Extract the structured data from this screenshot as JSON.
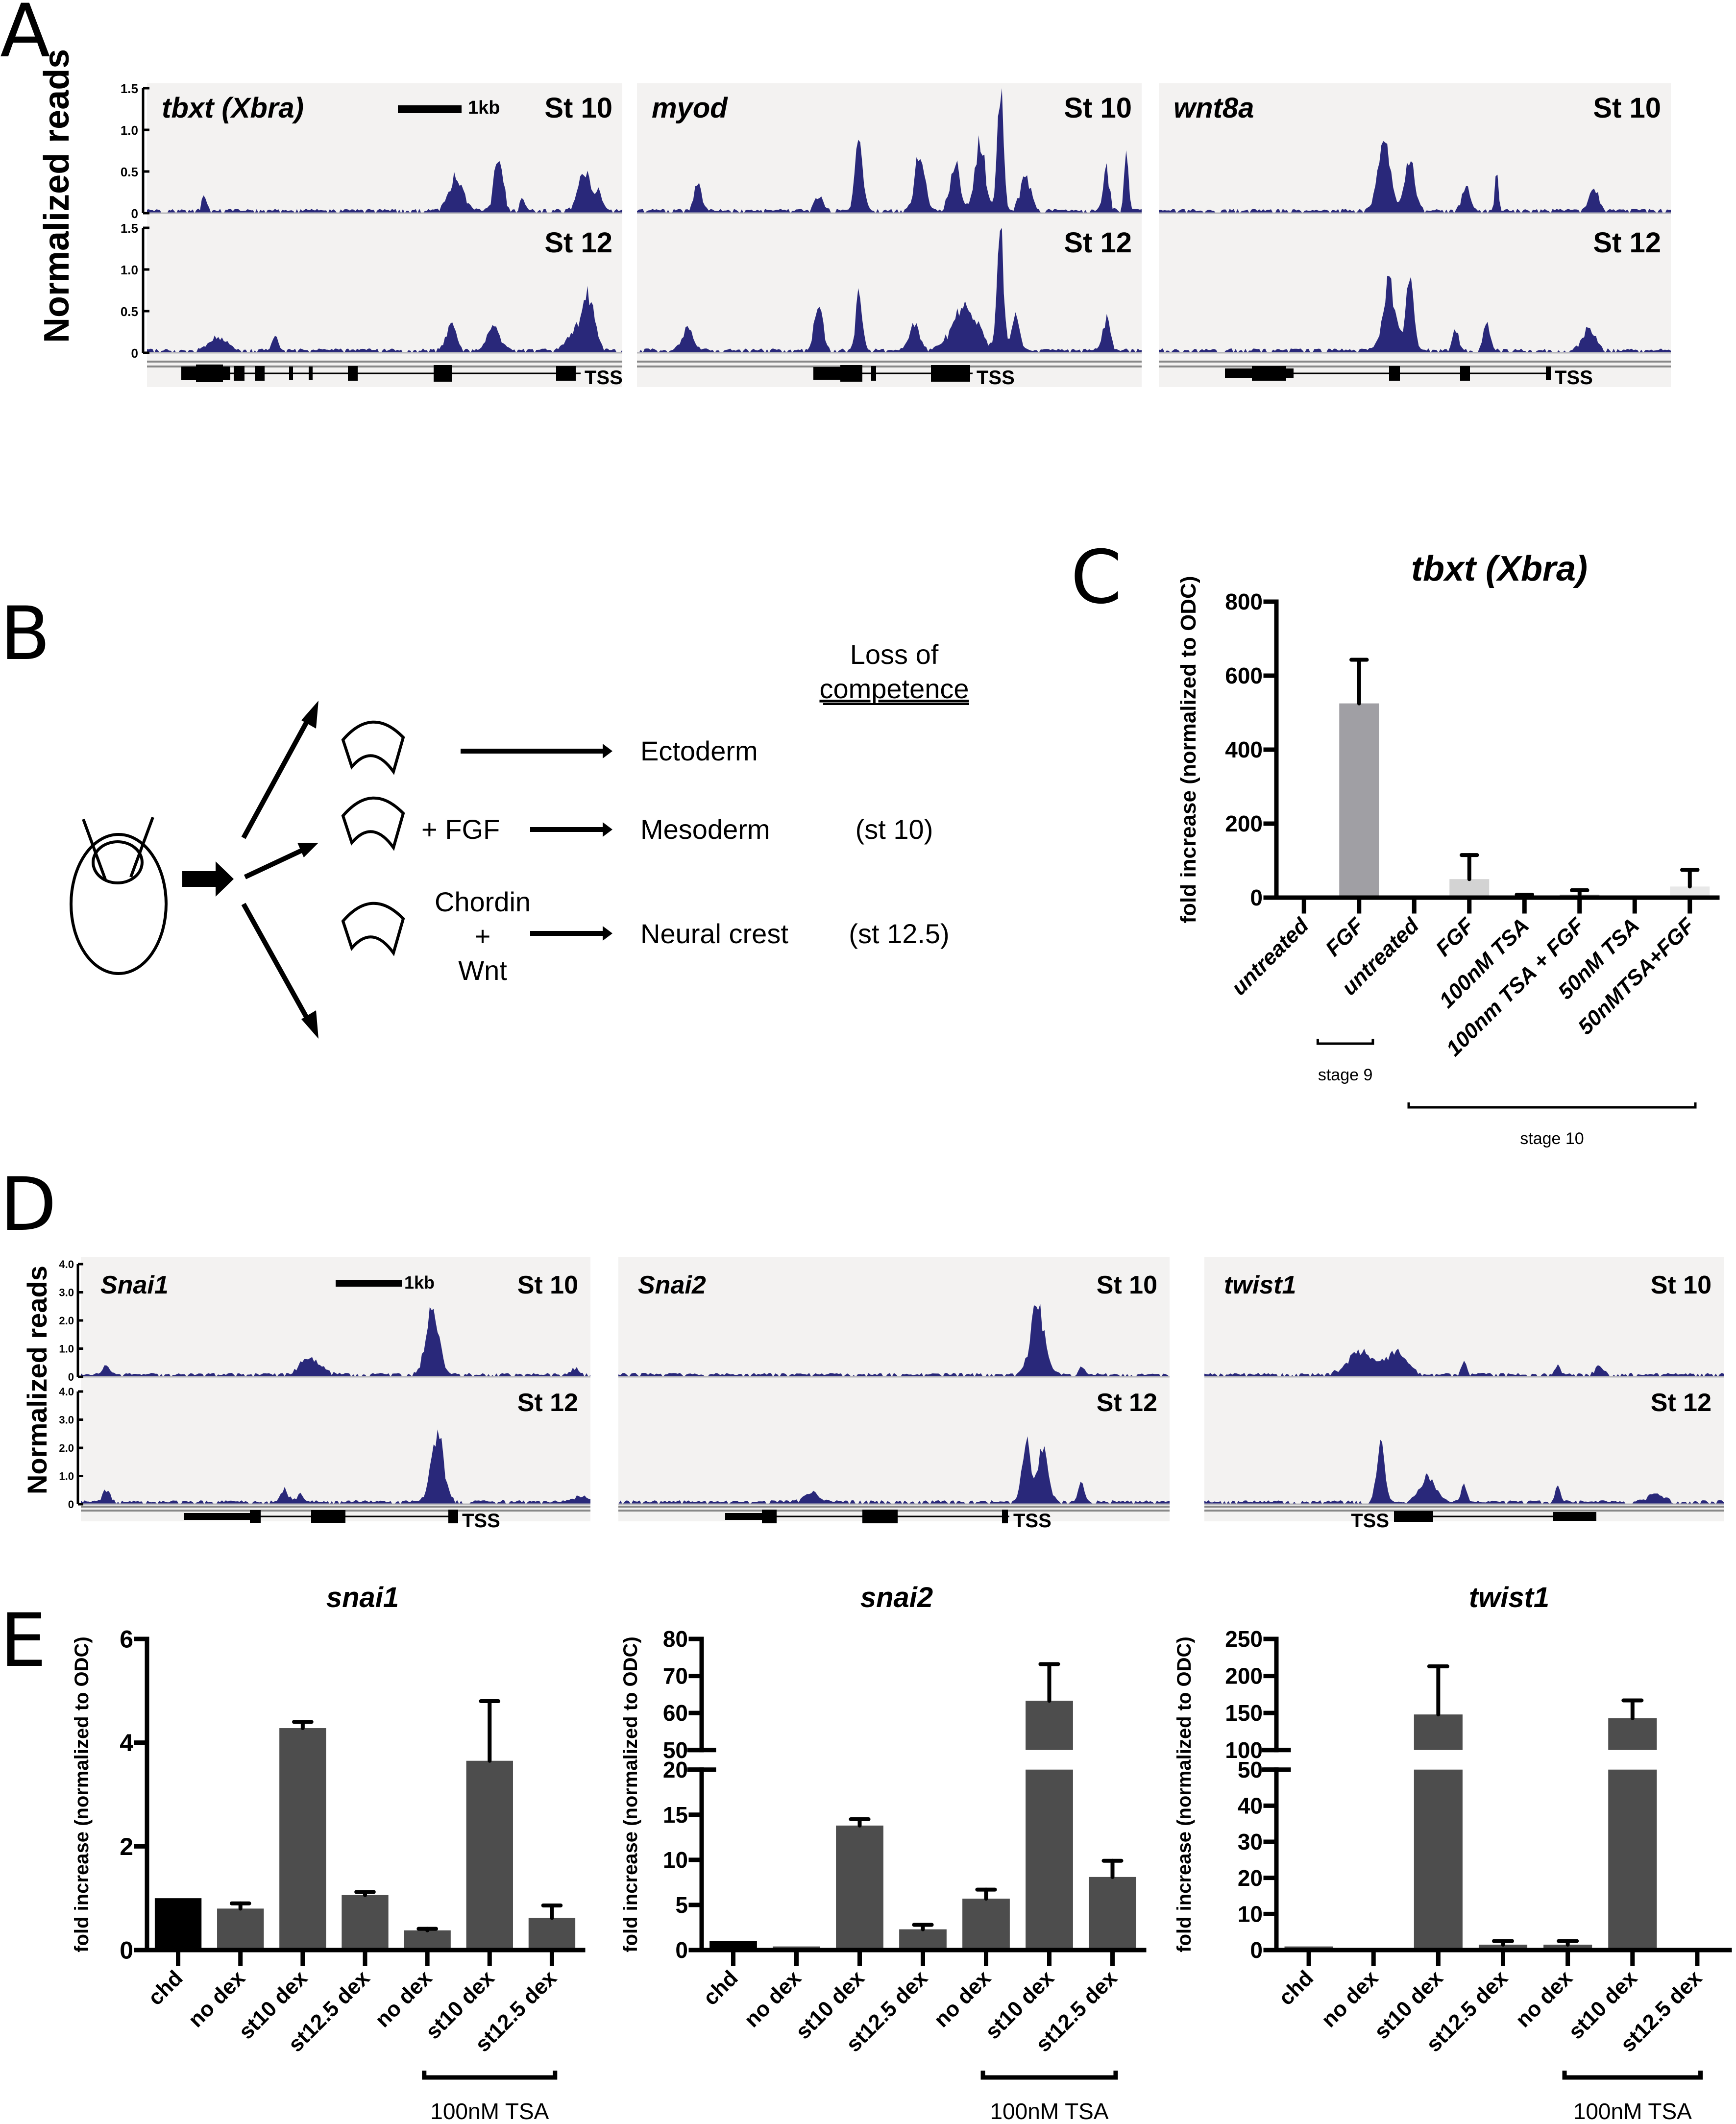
{
  "panels": {
    "A": {
      "letter": "A",
      "y_axis_label": "Normalized reads",
      "y_ticks": [
        "0",
        "0.5",
        "1.0",
        "1.5"
      ],
      "scale_bar_label": "1kb",
      "tss_label": "TSS",
      "stage_labels": [
        "St 10",
        "St 12"
      ],
      "tracks": [
        {
          "gene": "tbxt (Xbra)"
        },
        {
          "gene": "myod"
        },
        {
          "gene": "wnt8a"
        }
      ]
    },
    "B": {
      "letter": "B",
      "header_line1": "Loss of",
      "header_line2": "competence",
      "rows": [
        {
          "treatment": "",
          "fate": "Ectoderm",
          "stage": ""
        },
        {
          "treatment": "+  FGF",
          "fate": "Mesoderm",
          "stage": "(st 10)"
        },
        {
          "treatment_lines": [
            "Chordin",
            "+",
            "Wnt"
          ],
          "fate": "Neural crest",
          "stage": "(st 12.5)"
        }
      ]
    },
    "C": {
      "letter": "C"
    },
    "D": {
      "letter": "D",
      "y_axis_label": "Normalized reads",
      "y_ticks": [
        "0",
        "1.0",
        "2.0",
        "3.0",
        "4.0"
      ],
      "scale_bar_label": "1kb",
      "tss_label": "TSS",
      "stage_labels": [
        "St 10",
        "St 12"
      ],
      "tracks": [
        {
          "gene": "Snai1"
        },
        {
          "gene": "Snai2"
        },
        {
          "gene": "twist1"
        }
      ]
    },
    "E": {
      "letter": "E",
      "bracket_label": "100nM TSA"
    }
  },
  "colors": {
    "track_fill": "#29287a",
    "track_bg": "#f3f2f1",
    "bar_dark": "#4d4d4d",
    "bar_black": "#000000"
  },
  "chart_data": [
    {
      "id": "C",
      "type": "bar",
      "title": "tbxt (Xbra)",
      "ylabel": "fold increase (normalized to ODC)",
      "xlabel": "",
      "ylim": [
        0,
        800
      ],
      "yticks": [
        0,
        200,
        400,
        600,
        800
      ],
      "categories": [
        "untreated",
        "FGF",
        "untreated",
        "FGF",
        "100nM TSA",
        "100nm TSA + FGF",
        "50nM TSA",
        "50nMTSA+FGF"
      ],
      "values": [
        1,
        525,
        1,
        50,
        4,
        8,
        1,
        30
      ],
      "error_upper": [
        null,
        643,
        null,
        115,
        8,
        20,
        null,
        75
      ],
      "bar_colors": [
        "#a09fa4",
        "#a09fa4",
        "#d3d3d3",
        "#d3d3d3",
        "#777777",
        "#999999",
        "#e0e0e0",
        "#e8e8e8"
      ],
      "groups": [
        {
          "label": "stage 9",
          "from": 0,
          "to": 1
        },
        {
          "label": "stage 10",
          "from": 2,
          "to": 7
        }
      ]
    },
    {
      "id": "E-snai1",
      "type": "bar",
      "title": "snai1",
      "ylabel": "fold increase (normalized to ODC)",
      "ylim": [
        0,
        6
      ],
      "yticks": [
        0,
        2,
        4,
        6
      ],
      "categories": [
        "chd",
        "no dex",
        "st10 dex",
        "st12.5 dex",
        "no dex",
        "st10 dex",
        "st12.5 dex"
      ],
      "values": [
        1.0,
        0.8,
        4.28,
        1.06,
        0.38,
        3.65,
        0.62
      ],
      "error_upper": [
        null,
        0.9,
        4.4,
        1.12,
        0.41,
        4.8,
        0.86
      ],
      "bar_colors": [
        "#000000",
        "#4d4d4d",
        "#4d4d4d",
        "#4d4d4d",
        "#4d4d4d",
        "#4d4d4d",
        "#4d4d4d"
      ],
      "bracket": {
        "label": "100nM TSA",
        "from": 4,
        "to": 6
      }
    },
    {
      "id": "E-snai2",
      "type": "bar",
      "title": "snai2",
      "ylabel": "fold increase (normalized to ODC)",
      "ylim": [
        0,
        80
      ],
      "axis_break": [
        20,
        50
      ],
      "yticks": [
        0,
        5,
        10,
        15,
        20,
        50,
        60,
        70,
        80
      ],
      "categories": [
        "chd",
        "no dex",
        "st10 dex",
        "st12.5 dex",
        "no dex",
        "st10 dex",
        "st12.5 dex"
      ],
      "values": [
        1.0,
        0.4,
        13.8,
        2.3,
        5.7,
        63.3,
        8.1
      ],
      "error_upper": [
        null,
        null,
        14.5,
        2.8,
        6.7,
        73.2,
        9.9
      ],
      "bar_colors": [
        "#000000",
        "#4d4d4d",
        "#4d4d4d",
        "#4d4d4d",
        "#4d4d4d",
        "#4d4d4d",
        "#4d4d4d"
      ],
      "bracket": {
        "label": "100nM TSA",
        "from": 4,
        "to": 6
      }
    },
    {
      "id": "E-twist1",
      "type": "bar",
      "title": "twist1",
      "ylabel": "fold increase (normalized to ODC)",
      "ylim": [
        0,
        250
      ],
      "axis_break": [
        50,
        100
      ],
      "yticks": [
        0,
        10,
        20,
        30,
        40,
        50,
        100,
        150,
        200,
        250
      ],
      "categories": [
        "chd",
        "no dex",
        "st10 dex",
        "st12.5 dex",
        "no dex",
        "st10 dex",
        "st12.5 dex"
      ],
      "values": [
        1.0,
        0.6,
        148,
        1.5,
        1.5,
        143,
        0
      ],
      "error_upper": [
        null,
        null,
        213,
        2.5,
        2.5,
        167,
        null
      ],
      "bar_colors": [
        "#4d4d4d",
        "#4d4d4d",
        "#4d4d4d",
        "#4d4d4d",
        "#4d4d4d",
        "#4d4d4d",
        "#4d4d4d"
      ],
      "bracket": {
        "label": "100nM TSA",
        "from": 4,
        "to": 6
      }
    }
  ]
}
